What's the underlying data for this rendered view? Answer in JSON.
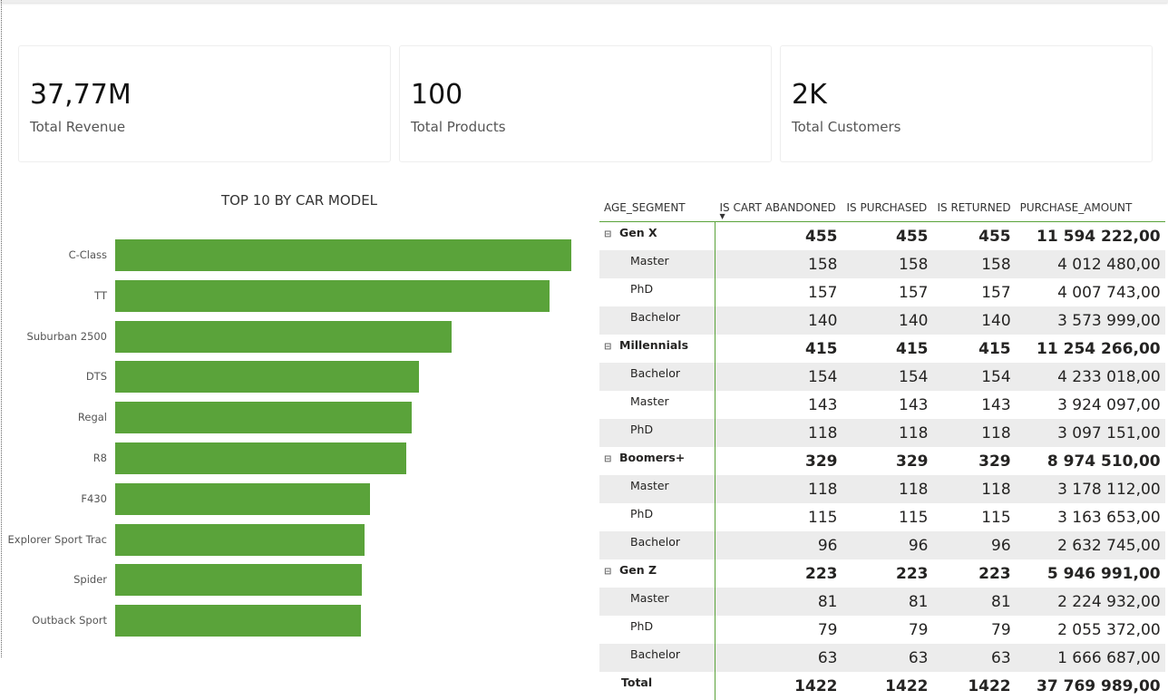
{
  "cards": [
    {
      "value": "37,77M",
      "label": "Total Revenue"
    },
    {
      "value": "100",
      "label": "Total Products"
    },
    {
      "value": "2K",
      "label": "Total Customers"
    }
  ],
  "chart_data": {
    "type": "bar",
    "orientation": "horizontal",
    "title": "TOP 10 BY CAR MODEL",
    "categories": [
      "C-Class",
      "TT",
      "Suburban 2500",
      "DTS",
      "Regal",
      "R8",
      "F430",
      "Explorer Sport Trac",
      "Spider",
      "Outback Sport"
    ],
    "values": [
      100,
      95.2,
      73.8,
      66.6,
      65,
      63.8,
      55.9,
      54.7,
      54.1,
      53.9
    ],
    "xlim": [
      0,
      100
    ],
    "color": "#5aa33a",
    "grid": false,
    "axes_visible": false
  },
  "table": {
    "headers": [
      "AGE_SEGMENT",
      "IS CART ABANDONED",
      "IS PURCHASED",
      "IS RETURNED",
      "PURCHASE_AMOUNT"
    ],
    "sort_icon": "sort-descending-icon",
    "rows": [
      {
        "type": "grp",
        "name": "Gen X",
        "vals": [
          "455",
          "455",
          "455",
          "11 594 222,00"
        ]
      },
      {
        "type": "sub",
        "name": "Master",
        "vals": [
          "158",
          "158",
          "158",
          "4 012 480,00"
        ]
      },
      {
        "type": "sub",
        "name": "PhD",
        "vals": [
          "157",
          "157",
          "157",
          "4 007 743,00"
        ]
      },
      {
        "type": "sub",
        "name": "Bachelor",
        "vals": [
          "140",
          "140",
          "140",
          "3 573 999,00"
        ]
      },
      {
        "type": "grp",
        "name": "Millennials",
        "vals": [
          "415",
          "415",
          "415",
          "11 254 266,00"
        ]
      },
      {
        "type": "sub",
        "name": "Bachelor",
        "vals": [
          "154",
          "154",
          "154",
          "4 233 018,00"
        ]
      },
      {
        "type": "sub",
        "name": "Master",
        "vals": [
          "143",
          "143",
          "143",
          "3 924 097,00"
        ]
      },
      {
        "type": "sub",
        "name": "PhD",
        "vals": [
          "118",
          "118",
          "118",
          "3 097 151,00"
        ]
      },
      {
        "type": "grp",
        "name": "Boomers+",
        "vals": [
          "329",
          "329",
          "329",
          "8 974 510,00"
        ]
      },
      {
        "type": "sub",
        "name": "Master",
        "vals": [
          "118",
          "118",
          "118",
          "3 178 112,00"
        ]
      },
      {
        "type": "sub",
        "name": "PhD",
        "vals": [
          "115",
          "115",
          "115",
          "3 163 653,00"
        ]
      },
      {
        "type": "sub",
        "name": "Bachelor",
        "vals": [
          "96",
          "96",
          "96",
          "2 632 745,00"
        ]
      },
      {
        "type": "grp",
        "name": "Gen Z",
        "vals": [
          "223",
          "223",
          "223",
          "5 946 991,00"
        ]
      },
      {
        "type": "sub",
        "name": "Master",
        "vals": [
          "81",
          "81",
          "81",
          "2 224 932,00"
        ]
      },
      {
        "type": "sub",
        "name": "PhD",
        "vals": [
          "79",
          "79",
          "79",
          "2 055 372,00"
        ]
      },
      {
        "type": "sub",
        "name": "Bachelor",
        "vals": [
          "63",
          "63",
          "63",
          "1 666 687,00"
        ]
      },
      {
        "type": "tot",
        "name": "Total",
        "vals": [
          "1422",
          "1422",
          "1422",
          "37 769 989,00"
        ]
      }
    ]
  }
}
